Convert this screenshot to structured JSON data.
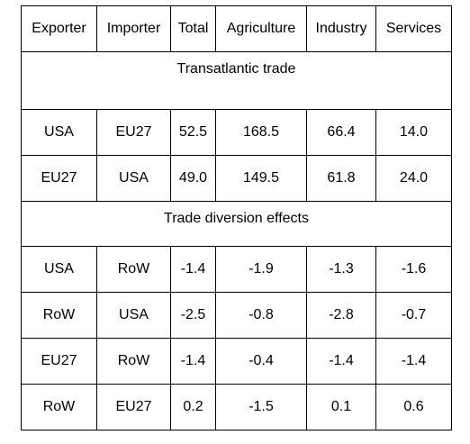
{
  "headers": [
    "Exporter",
    "Importer",
    "Total",
    "Agriculture",
    "Industry",
    "Services"
  ],
  "sections": [
    {
      "title": "Transatlantic trade",
      "rows": [
        [
          "USA",
          "EU27",
          "52.5",
          "168.5",
          "66.4",
          "14.0"
        ],
        [
          "EU27",
          "USA",
          "49.0",
          "149.5",
          "61.8",
          "24.0"
        ]
      ]
    },
    {
      "title": "Trade diversion effects",
      "rows": [
        [
          "USA",
          "RoW",
          "-1.4",
          "-1.9",
          "-1.3",
          "-1.6"
        ],
        [
          "RoW",
          "USA",
          "-2.5",
          "-0.8",
          "-2.8",
          "-0.7"
        ],
        [
          "EU27",
          "RoW",
          "-1.4",
          "-0.4",
          "-1.4",
          "-1.4"
        ],
        [
          "RoW",
          "EU27",
          "0.2",
          "-1.5",
          "0.1",
          "0.6"
        ]
      ]
    }
  ]
}
